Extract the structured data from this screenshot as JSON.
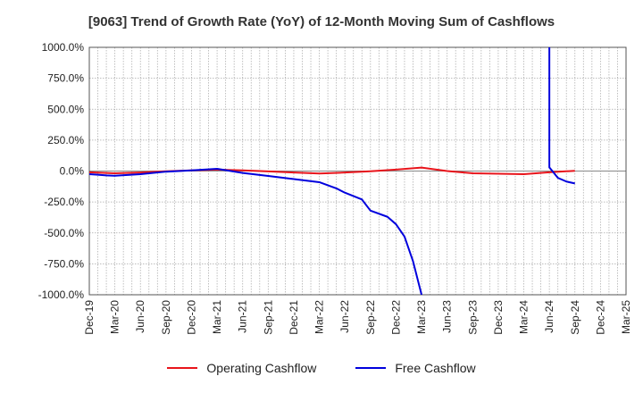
{
  "chart_data": {
    "type": "line",
    "title": "[9063]  Trend of Growth Rate (YoY) of 12-Month Moving Sum of Cashflows",
    "xlabel": "",
    "ylabel": "",
    "ylim": [
      -1000,
      1000
    ],
    "y_ticks": [
      "1000.0%",
      "750.0%",
      "500.0%",
      "250.0%",
      "0.0%",
      "-250.0%",
      "-500.0%",
      "-750.0%",
      "-1000.0%"
    ],
    "y_tick_values": [
      1000,
      750,
      500,
      250,
      0,
      -250,
      -500,
      -750,
      -1000
    ],
    "x_ticks": [
      "Dec-19",
      "Mar-20",
      "Jun-20",
      "Sep-20",
      "Dec-20",
      "Mar-21",
      "Jun-21",
      "Sep-21",
      "Dec-21",
      "Mar-22",
      "Jun-22",
      "Sep-22",
      "Dec-22",
      "Mar-23",
      "Jun-23",
      "Sep-23",
      "Dec-23",
      "Mar-24",
      "Jun-24",
      "Sep-24",
      "Dec-24",
      "Mar-25"
    ],
    "grid": true,
    "legend_position": "bottom",
    "series": [
      {
        "name": "Operating Cashflow",
        "color": "#e8141b",
        "points": [
          [
            "Dec-19",
            -10
          ],
          [
            "Mar-20",
            -18
          ],
          [
            "Jun-20",
            -12
          ],
          [
            "Sep-20",
            -2
          ],
          [
            "Dec-20",
            5
          ],
          [
            "Mar-21",
            12
          ],
          [
            "Jun-21",
            5
          ],
          [
            "Sep-21",
            -3
          ],
          [
            "Dec-21",
            -12
          ],
          [
            "Mar-22",
            -20
          ],
          [
            "Jun-22",
            -12
          ],
          [
            "Sep-22",
            -2
          ],
          [
            "Dec-22",
            12
          ],
          [
            "Mar-23",
            28
          ],
          [
            "Jun-23",
            0
          ],
          [
            "Sep-23",
            -18
          ],
          [
            "Dec-23",
            -22
          ],
          [
            "Mar-24",
            -25
          ],
          [
            "Jun-24",
            -10
          ],
          [
            "Sep-24",
            2
          ]
        ]
      },
      {
        "name": "Free Cashflow",
        "color": "#0000dd",
        "points": [
          [
            "Dec-19",
            -25
          ],
          [
            "Jan-20",
            -30
          ],
          [
            "Feb-20",
            -35
          ],
          [
            "Mar-20",
            -38
          ],
          [
            "Jun-20",
            -25
          ],
          [
            "Sep-20",
            -5
          ],
          [
            "Dec-20",
            5
          ],
          [
            "Mar-21",
            18
          ],
          [
            "Jun-21",
            -15
          ],
          [
            "Sep-21",
            -40
          ],
          [
            "Dec-21",
            -65
          ],
          [
            "Mar-22",
            -90
          ],
          [
            "May-22",
            -140
          ],
          [
            "Jun-22",
            -175
          ],
          [
            "Aug-22",
            -230
          ],
          [
            "Sep-22",
            -320
          ],
          [
            "Nov-22",
            -370
          ],
          [
            "Dec-22",
            -430
          ],
          [
            "Jan-23",
            -530
          ],
          [
            "Feb-23",
            -730
          ],
          [
            "Mar-23",
            -1000
          ],
          [
            "Jun-24",
            1000
          ],
          [
            "Jun-24",
            30
          ],
          [
            "Jul-24",
            -55
          ],
          [
            "Aug-24",
            -85
          ],
          [
            "Sep-24",
            -100
          ]
        ]
      }
    ]
  }
}
